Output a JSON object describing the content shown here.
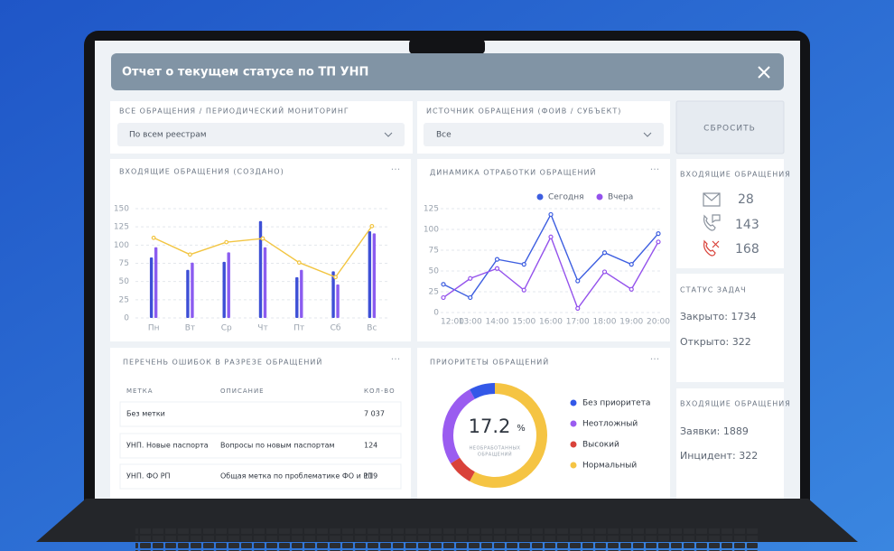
{
  "header": {
    "title": "Отчет о текущем статусе по ТП УНП"
  },
  "filters": [
    {
      "label": "ВСЕ ОБРАЩЕНИЯ / ПЕРИОДИЧЕСКИЙ МОНИТОРИНГ",
      "value": "По всем реестрам"
    },
    {
      "label": "ИСТОЧНИК ОБРАЩЕНИЯ (ФОИВ / СУБЪЕКТ)",
      "value": "Все"
    }
  ],
  "reset_button": "СБРОСИТЬ",
  "chart_data": [
    {
      "type": "bar",
      "title": "ВХОДЯЩИЕ ОБРАЩЕНИЯ (СОЗДАНО)",
      "categories": [
        "Пн",
        "Вт",
        "Ср",
        "Чт",
        "Пт",
        "Сб",
        "Вс"
      ],
      "series": [
        {
          "type": "bar",
          "color": "#3d4fd6",
          "values": [
            83,
            66,
            77,
            133,
            56,
            64,
            119
          ]
        },
        {
          "type": "bar",
          "color": "#8b5cf0",
          "values": [
            97,
            76,
            90,
            97,
            66,
            46,
            116
          ]
        },
        {
          "type": "line",
          "color": "#f2c542",
          "values": [
            110,
            87,
            104,
            109,
            76,
            56,
            126
          ]
        }
      ],
      "ylim": [
        0,
        150
      ],
      "yticks": [
        0,
        25,
        50,
        75,
        100,
        125,
        150
      ],
      "grid": true
    },
    {
      "type": "line",
      "title": "ДИНАМИКА ОТРАБОТКИ ОБРАЩЕНИЙ",
      "categories": [
        "12:00",
        "13:00",
        "14:00",
        "15:00",
        "16:00",
        "17:00",
        "18:00",
        "19:00",
        "20:00"
      ],
      "series": [
        {
          "name": "Сегодня",
          "color": "#3d5ee0",
          "values": [
            34,
            18,
            64,
            58,
            118,
            38,
            72,
            58,
            95
          ]
        },
        {
          "name": "Вчера",
          "color": "#9452ec",
          "values": [
            18,
            41,
            53,
            27,
            91,
            5,
            49,
            28,
            85
          ]
        }
      ],
      "ylim": [
        0,
        125
      ],
      "yticks": [
        0,
        25,
        50,
        75,
        100,
        125
      ],
      "grid": true,
      "legend": "top"
    },
    {
      "type": "pie",
      "title": "ПРИОРИТЕТЫ ОБРАЩЕНИЙ",
      "categories": [
        "Без приоритета",
        "Неотложный",
        "Высокий",
        "Нормальный"
      ],
      "values": [
        8,
        26,
        8,
        58
      ],
      "colors": [
        "#3358e8",
        "#9a5cf0",
        "#d9423a",
        "#f5c443"
      ],
      "center_value": 17.2,
      "center_unit": "%",
      "center_caption": [
        "НЕОБРАБОТАННЫХ",
        "ОБРАЩЕНИЙ"
      ],
      "legend": "right"
    }
  ],
  "table": {
    "title": "ПЕРЕЧЕНЬ ОШИБОК В РАЗРЕЗЕ ОБРАЩЕНИЙ",
    "columns": [
      "МЕТКА",
      "ОПИСАНИЕ",
      "КОЛ-ВО"
    ],
    "rows": [
      {
        "label": "Без метки",
        "count": "7 037"
      },
      {
        "label": "УНП. Новые паспорта",
        "description": "Вопросы по новым паспортам",
        "count": "124"
      },
      {
        "label": "УНП. ФО РП",
        "description": "Общая метка по проблематике ФО и РП",
        "count": "119"
      }
    ]
  },
  "incoming": {
    "title": "ВХОДЯЩИЕ ОБРАЩЕНИЯ",
    "items": [
      28,
      143,
      168
    ]
  },
  "task_status": {
    "title": "СТАТУС ЗАДАЧ",
    "items": [
      "Закрыто: 1734",
      "Открыто: 322"
    ]
  },
  "incoming_types": {
    "title": "ВХОДЯЩИЕ ОБРАЩЕНИЯ",
    "items": [
      "Заявки: 1889",
      "Инцидент: 322"
    ]
  }
}
